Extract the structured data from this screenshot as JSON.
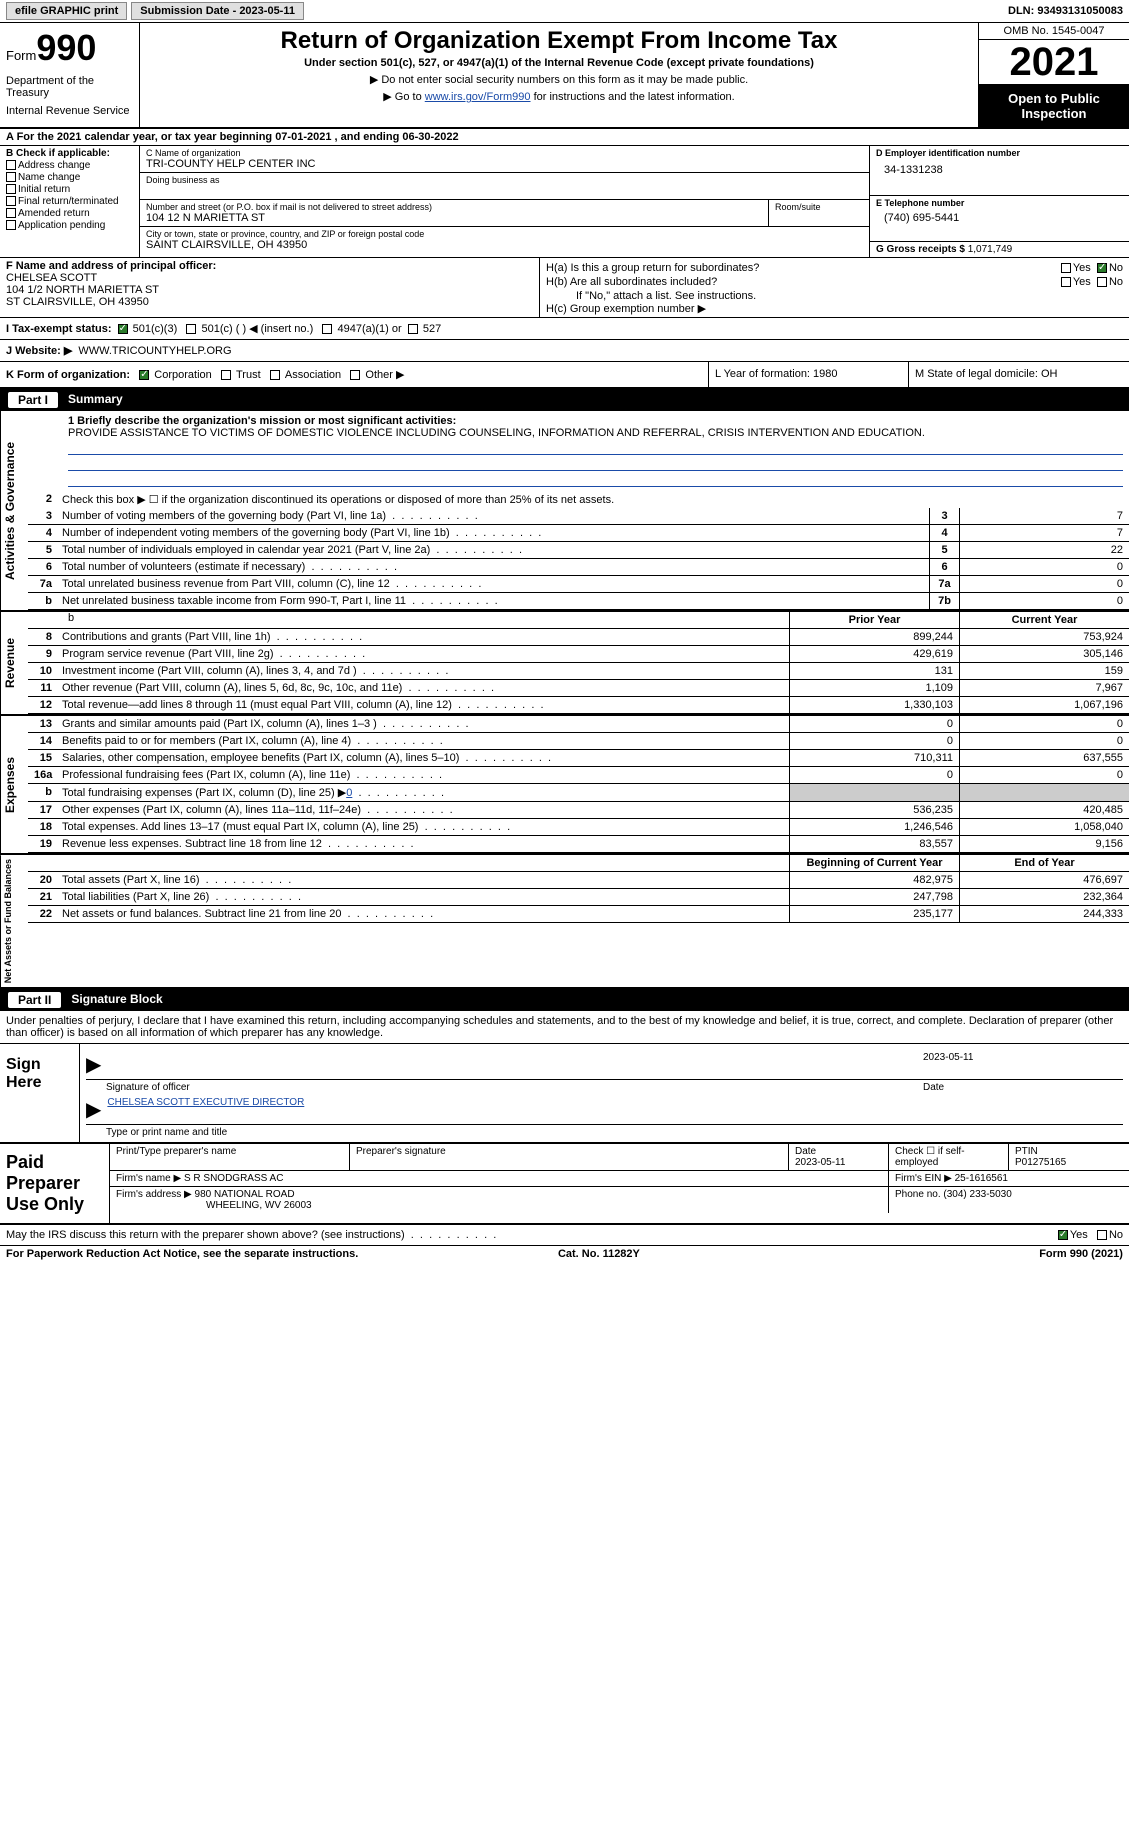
{
  "topbar": {
    "efile": "efile GRAPHIC print",
    "submission": "Submission Date - 2023-05-11",
    "dln": "DLN: 93493131050083"
  },
  "header": {
    "form_prefix": "Form",
    "form_number": "990",
    "dept": "Department of the Treasury",
    "irs": "Internal Revenue Service",
    "title": "Return of Organization Exempt From Income Tax",
    "subtitle": "Under section 501(c), 527, or 4947(a)(1) of the Internal Revenue Code (except private foundations)",
    "note1": "▶ Do not enter social security numbers on this form as it may be made public.",
    "note2_pre": "▶ Go to ",
    "note2_link": "www.irs.gov/Form990",
    "note2_post": " for instructions and the latest information.",
    "omb": "OMB No. 1545-0047",
    "year": "2021",
    "open": "Open to Public Inspection"
  },
  "row_a": "A For the 2021 calendar year, or tax year beginning 07-01-2021    , and ending 06-30-2022",
  "section_b": {
    "check_label": "B Check if applicable:",
    "checks": [
      "Address change",
      "Name change",
      "Initial return",
      "Final return/terminated",
      "Amended return",
      "Application pending"
    ],
    "c_label": "C Name of organization",
    "c_name": "TRI-COUNTY HELP CENTER INC",
    "dba_label": "Doing business as",
    "street_label": "Number and street (or P.O. box if mail is not delivered to street address)",
    "room_label": "Room/suite",
    "street": "104 12 N MARIETTA ST",
    "city_label": "City or town, state or province, country, and ZIP or foreign postal code",
    "city": "SAINT CLAIRSVILLE, OH  43950",
    "d_label": "D Employer identification number",
    "ein": "34-1331238",
    "e_label": "E Telephone number",
    "phone": "(740) 695-5441",
    "g_label": "G Gross receipts $",
    "gross": "1,071,749"
  },
  "section_f": {
    "f_label": "F Name and address of principal officer:",
    "name": "CHELSEA SCOTT",
    "addr1": "104 1/2 NORTH MARIETTA ST",
    "addr2": "ST CLAIRSVILLE, OH  43950"
  },
  "section_h": {
    "ha": "H(a)  Is this a group return for subordinates?",
    "hb": "H(b)  Are all subordinates included?",
    "hb_note": "If \"No,\" attach a list. See instructions.",
    "hc": "H(c)  Group exemption number ▶",
    "yes": "Yes",
    "no": "No"
  },
  "row_i": {
    "label": "I  Tax-exempt status:",
    "opt1": "501(c)(3)",
    "opt2": "501(c) (  ) ◀ (insert no.)",
    "opt3": "4947(a)(1) or",
    "opt4": "527"
  },
  "row_j": {
    "label": "J  Website: ▶",
    "val": "WWW.TRICOUNTYHELP.ORG"
  },
  "row_k": {
    "label": "K Form of organization:",
    "opts": [
      "Corporation",
      "Trust",
      "Association",
      "Other ▶"
    ],
    "l": "L Year of formation: 1980",
    "m": "M State of legal domicile: OH"
  },
  "part1": {
    "header": "Part I",
    "title": "Summary",
    "line1_label": "1   Briefly describe the organization's mission or most significant activities:",
    "mission": "PROVIDE ASSISTANCE TO VICTIMS OF DOMESTIC VIOLENCE INCLUDING COUNSELING, INFORMATION AND REFERRAL, CRISIS INTERVENTION AND EDUCATION.",
    "line2": "Check this box ▶ ☐  if the organization discontinued its operations or disposed of more than 25% of its net assets.",
    "vlabels": {
      "ag": "Activities & Governance",
      "rev": "Revenue",
      "exp": "Expenses",
      "net": "Net Assets or Fund Balances"
    },
    "prior_year": "Prior Year",
    "current_year": "Current Year",
    "begin_year": "Beginning of Current Year",
    "end_year": "End of Year",
    "lines_ag": [
      {
        "n": "3",
        "d": "Number of voting members of the governing body (Part VI, line 1a)",
        "box": "3",
        "v": "7"
      },
      {
        "n": "4",
        "d": "Number of independent voting members of the governing body (Part VI, line 1b)",
        "box": "4",
        "v": "7"
      },
      {
        "n": "5",
        "d": "Total number of individuals employed in calendar year 2021 (Part V, line 2a)",
        "box": "5",
        "v": "22"
      },
      {
        "n": "6",
        "d": "Total number of volunteers (estimate if necessary)",
        "box": "6",
        "v": "0"
      },
      {
        "n": "7a",
        "d": "Total unrelated business revenue from Part VIII, column (C), line 12",
        "box": "7a",
        "v": "0"
      },
      {
        "n": "b",
        "d": "Net unrelated business taxable income from Form 990-T, Part I, line 11",
        "box": "7b",
        "v": "0"
      }
    ],
    "lines_rev": [
      {
        "n": "8",
        "d": "Contributions and grants (Part VIII, line 1h)",
        "py": "899,244",
        "cy": "753,924"
      },
      {
        "n": "9",
        "d": "Program service revenue (Part VIII, line 2g)",
        "py": "429,619",
        "cy": "305,146"
      },
      {
        "n": "10",
        "d": "Investment income (Part VIII, column (A), lines 3, 4, and 7d )",
        "py": "131",
        "cy": "159"
      },
      {
        "n": "11",
        "d": "Other revenue (Part VIII, column (A), lines 5, 6d, 8c, 9c, 10c, and 11e)",
        "py": "1,109",
        "cy": "7,967"
      },
      {
        "n": "12",
        "d": "Total revenue—add lines 8 through 11 (must equal Part VIII, column (A), line 12)",
        "py": "1,330,103",
        "cy": "1,067,196"
      }
    ],
    "lines_exp": [
      {
        "n": "13",
        "d": "Grants and similar amounts paid (Part IX, column (A), lines 1–3 )",
        "py": "0",
        "cy": "0"
      },
      {
        "n": "14",
        "d": "Benefits paid to or for members (Part IX, column (A), line 4)",
        "py": "0",
        "cy": "0"
      },
      {
        "n": "15",
        "d": "Salaries, other compensation, employee benefits (Part IX, column (A), lines 5–10)",
        "py": "710,311",
        "cy": "637,555"
      },
      {
        "n": "16a",
        "d": "Professional fundraising fees (Part IX, column (A), line 11e)",
        "py": "0",
        "cy": "0"
      },
      {
        "n": "b",
        "d": "Total fundraising expenses (Part IX, column (D), line 25) ▶0",
        "py": "",
        "cy": "",
        "shaded": true
      },
      {
        "n": "17",
        "d": "Other expenses (Part IX, column (A), lines 11a–11d, 11f–24e)",
        "py": "536,235",
        "cy": "420,485"
      },
      {
        "n": "18",
        "d": "Total expenses. Add lines 13–17 (must equal Part IX, column (A), line 25)",
        "py": "1,246,546",
        "cy": "1,058,040"
      },
      {
        "n": "19",
        "d": "Revenue less expenses. Subtract line 18 from line 12",
        "py": "83,557",
        "cy": "9,156"
      }
    ],
    "lines_net": [
      {
        "n": "20",
        "d": "Total assets (Part X, line 16)",
        "py": "482,975",
        "cy": "476,697"
      },
      {
        "n": "21",
        "d": "Total liabilities (Part X, line 26)",
        "py": "247,798",
        "cy": "232,364"
      },
      {
        "n": "22",
        "d": "Net assets or fund balances. Subtract line 21 from line 20",
        "py": "235,177",
        "cy": "244,333"
      }
    ]
  },
  "part2": {
    "header": "Part II",
    "title": "Signature Block",
    "penalty": "Under penalties of perjury, I declare that I have examined this return, including accompanying schedules and statements, and to the best of my knowledge and belief, it is true, correct, and complete. Declaration of preparer (other than officer) is based on all information of which preparer has any knowledge.",
    "sign_here": "Sign Here",
    "sig_officer": "Signature of officer",
    "sig_date": "2023-05-11",
    "date_label": "Date",
    "officer_name": "CHELSEA SCOTT  EXECUTIVE DIRECTOR",
    "type_name": "Type or print name and title",
    "paid_prep": "Paid Preparer Use Only",
    "print_name_label": "Print/Type preparer's name",
    "prep_sig_label": "Preparer's signature",
    "prep_date": "2023-05-11",
    "check_self": "Check ☐ if self-employed",
    "ptin_label": "PTIN",
    "ptin": "P01275165",
    "firm_name_label": "Firm's name    ▶",
    "firm_name": "S R SNODGRASS AC",
    "firm_ein_label": "Firm's EIN ▶",
    "firm_ein": "25-1616561",
    "firm_addr_label": "Firm's address ▶",
    "firm_addr1": "980 NATIONAL ROAD",
    "firm_addr2": "WHEELING, WV  26003",
    "firm_phone_label": "Phone no.",
    "firm_phone": "(304) 233-5030",
    "discuss": "May the IRS discuss this return with the preparer shown above? (see instructions)",
    "paperwork": "For Paperwork Reduction Act Notice, see the separate instructions.",
    "cat": "Cat. No. 11282Y",
    "form_footer": "Form 990 (2021)"
  }
}
